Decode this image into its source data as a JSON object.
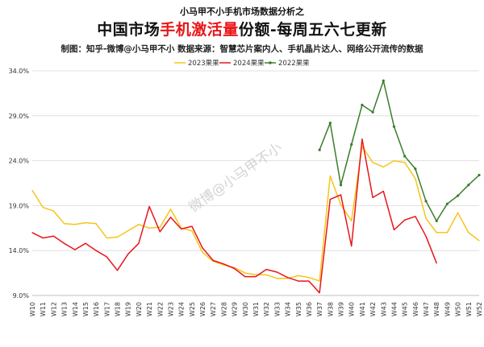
{
  "header": {
    "subtitle_top": "小马甲不小手机市场数据分析之",
    "title_pre": "中国市场",
    "title_highlight": "手机激活量",
    "title_post": "份额-每周五六七更新",
    "credits": "制图：知乎-微博@小马甲不小   数据来源：智慧芯片案内人、手机晶片达人、网络公开流传的数据"
  },
  "watermark": "微博@小马甲不小",
  "chart_data": {
    "type": "line",
    "categories": [
      "W10",
      "W11",
      "W12",
      "W13",
      "W14",
      "W15",
      "W16",
      "W17",
      "W18",
      "W19",
      "W20",
      "W21",
      "W22",
      "W23",
      "W24",
      "W25",
      "W26",
      "W27",
      "W28",
      "W29",
      "W30",
      "W31",
      "W32",
      "W33",
      "W34",
      "W35",
      "W36",
      "W37",
      "W38",
      "W39",
      "W40",
      "W41",
      "W42",
      "W43",
      "W44",
      "W45",
      "W46",
      "W47",
      "W48",
      "W49",
      "W50",
      "W51",
      "W52"
    ],
    "y_ticks": [
      "9.0%",
      "14.0%",
      "19.0%",
      "24.0%",
      "29.0%",
      "34.0%"
    ],
    "ylim": [
      9,
      34
    ],
    "grid": true,
    "legend_position": "top-right",
    "series": [
      {
        "name": "2023果果",
        "color": "#f5c518",
        "values": [
          20.7,
          18.8,
          18.4,
          17.0,
          16.9,
          17.1,
          17.0,
          15.4,
          15.5,
          16.2,
          16.9,
          16.5,
          16.6,
          18.6,
          16.5,
          16.2,
          13.8,
          12.8,
          12.4,
          12.1,
          11.5,
          11.3,
          11.3,
          10.9,
          10.9,
          11.2,
          11.0,
          10.6,
          22.3,
          19.1,
          17.3,
          25.6,
          23.8,
          23.3,
          24.0,
          23.8,
          22.0,
          17.6,
          16.0,
          16.0,
          18.2,
          16.0,
          15.1
        ]
      },
      {
        "name": "2024果果",
        "color": "#e8161a",
        "values": [
          16.0,
          15.4,
          15.6,
          14.8,
          14.1,
          14.8,
          14.0,
          13.3,
          11.8,
          13.6,
          14.8,
          18.9,
          16.1,
          17.7,
          16.4,
          16.7,
          14.3,
          12.9,
          12.5,
          12.0,
          11.1,
          11.1,
          11.9,
          11.6,
          11.0,
          10.6,
          10.6,
          9.3,
          19.7,
          20.2,
          14.5,
          26.4,
          19.9,
          20.6,
          16.3,
          17.4,
          17.8,
          15.6,
          12.6,
          null,
          null,
          null,
          null
        ]
      },
      {
        "name": "2022果果",
        "color": "#3a7d2c",
        "values": [
          null,
          null,
          null,
          null,
          null,
          null,
          null,
          null,
          null,
          null,
          null,
          null,
          null,
          null,
          null,
          null,
          null,
          null,
          null,
          null,
          null,
          null,
          null,
          null,
          null,
          null,
          null,
          25.2,
          28.2,
          21.3,
          25.8,
          30.2,
          29.4,
          32.9,
          27.8,
          24.5,
          23.1,
          19.5,
          17.3,
          19.2,
          20.1,
          21.3,
          22.4
        ]
      }
    ]
  }
}
